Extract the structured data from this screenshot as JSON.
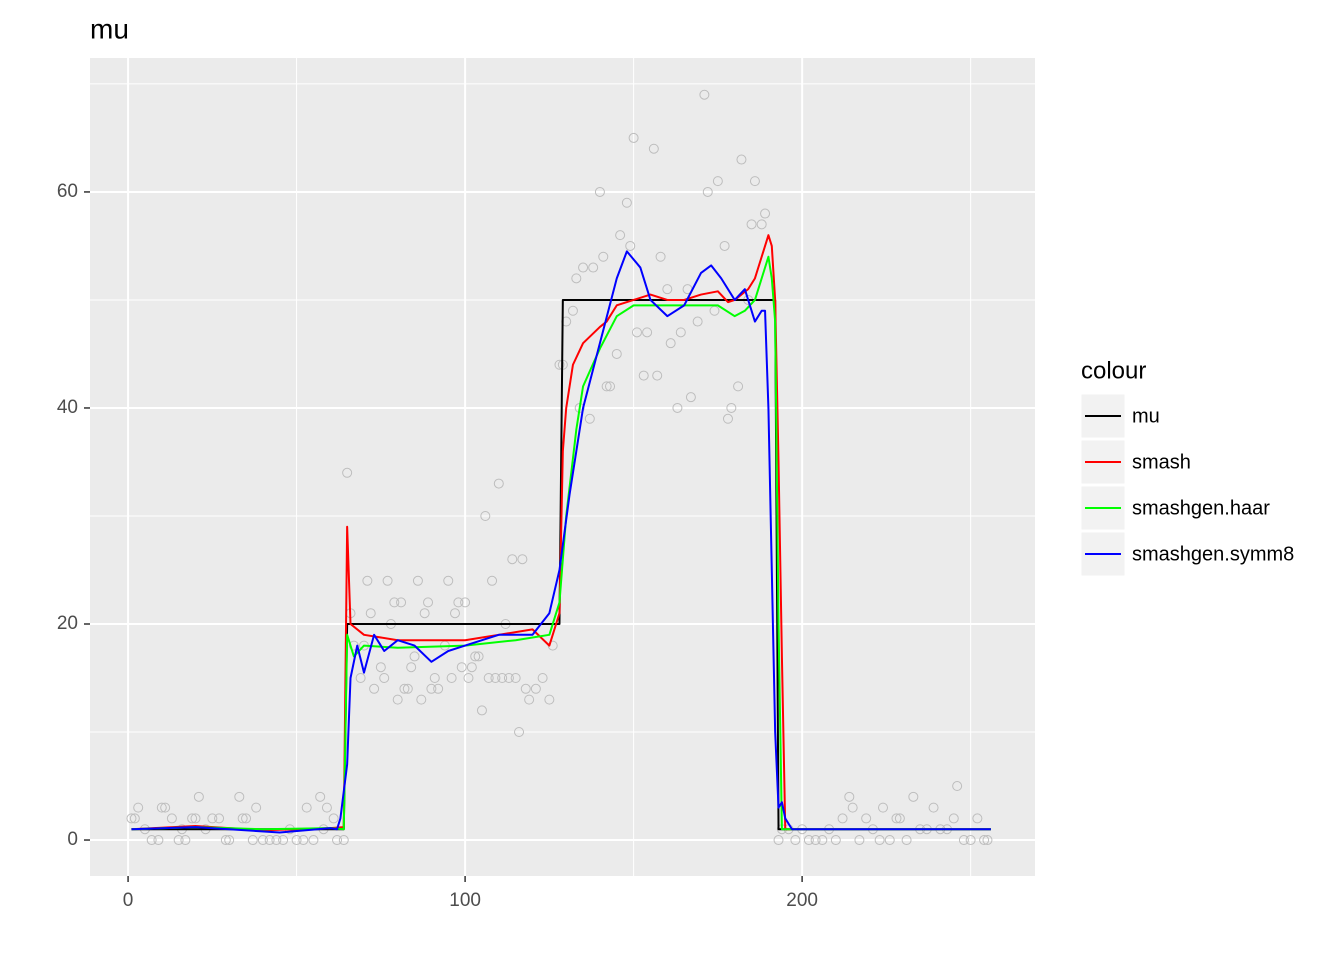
{
  "chart_data": {
    "type": "line",
    "title": "mu",
    "xlim": [
      -11.3,
      269.1
    ],
    "ylim": [
      -3.33,
      72.4
    ],
    "xticks": [
      0,
      100,
      200
    ],
    "yticks": [
      0,
      20,
      40,
      60
    ],
    "x_minor_ticks": [
      50,
      150,
      250
    ],
    "y_minor_ticks": [
      10,
      30,
      50,
      70
    ],
    "grid": true,
    "legend": {
      "title": "colour",
      "position": "right"
    },
    "points": {
      "color": "#bdbdbd",
      "x": [
        1,
        2,
        3,
        5,
        7,
        9,
        10,
        11,
        13,
        15,
        16,
        17,
        19,
        20,
        21,
        23,
        25,
        27,
        29,
        30,
        33,
        34,
        35,
        37,
        38,
        40,
        42,
        44,
        46,
        48,
        50,
        52,
        53,
        55,
        57,
        58,
        59,
        61,
        62,
        64,
        65,
        66,
        67,
        69,
        70,
        71,
        72,
        73,
        75,
        76,
        77,
        78,
        79,
        80,
        81,
        82,
        83,
        84,
        85,
        86,
        87,
        88,
        89,
        90,
        91,
        92,
        94,
        95,
        96,
        97,
        98,
        99,
        100,
        101,
        102,
        103,
        104,
        105,
        106,
        107,
        108,
        109,
        110,
        111,
        112,
        113,
        114,
        115,
        116,
        117,
        118,
        119,
        121,
        123,
        125,
        126,
        128,
        129,
        130,
        132,
        133,
        134,
        135,
        137,
        138,
        140,
        141,
        142,
        143,
        145,
        146,
        148,
        149,
        150,
        151,
        153,
        154,
        156,
        157,
        158,
        160,
        161,
        163,
        164,
        166,
        167,
        169,
        171,
        172,
        174,
        175,
        177,
        178,
        179,
        181,
        182,
        184,
        185,
        186,
        188,
        189,
        193,
        194,
        196,
        198,
        200,
        202,
        204,
        206,
        208,
        210,
        212,
        214,
        215,
        217,
        219,
        221,
        223,
        224,
        226,
        228,
        229,
        231,
        233,
        235,
        237,
        239,
        241,
        243,
        245,
        246,
        248,
        250,
        252,
        254,
        255
      ],
      "values": [
        2,
        2,
        3,
        1,
        0,
        0,
        3,
        3,
        2,
        0,
        1,
        0,
        2,
        2,
        4,
        1,
        2,
        2,
        0,
        0,
        4,
        2,
        2,
        0,
        3,
        0,
        0,
        0,
        0,
        1,
        0,
        0,
        3,
        0,
        4,
        1,
        3,
        2,
        0,
        0,
        34,
        21,
        18,
        15,
        18,
        24,
        21,
        14,
        16,
        15,
        24,
        20,
        22,
        13,
        22,
        14,
        14,
        16,
        17,
        24,
        13,
        21,
        22,
        14,
        15,
        14,
        18,
        24,
        15,
        21,
        22,
        16,
        22,
        15,
        16,
        17,
        17,
        12,
        30,
        15,
        24,
        15,
        33,
        15,
        20,
        15,
        26,
        15,
        10,
        26,
        14,
        13,
        14,
        15,
        13,
        18,
        44,
        44,
        48,
        49,
        52,
        40,
        53,
        39,
        53,
        60,
        54,
        42,
        42,
        45,
        56,
        59,
        55,
        65,
        47,
        43,
        47,
        64,
        43,
        54,
        51,
        46,
        40,
        47,
        51,
        41,
        48,
        69,
        60,
        49,
        61,
        55,
        39,
        40,
        42,
        63,
        50,
        57,
        61,
        57,
        58,
        0,
        1,
        1,
        0,
        1,
        0,
        0,
        0,
        1,
        0,
        2,
        4,
        3,
        0,
        2,
        1,
        0,
        3,
        0,
        2,
        2,
        0,
        4,
        1,
        1,
        3,
        1,
        1,
        2,
        5,
        0,
        0,
        2,
        0,
        0
      ]
    },
    "series": [
      {
        "name": "mu",
        "color": "#000000",
        "x": [
          1,
          64,
          65,
          128,
          129,
          192,
          193,
          256
        ],
        "values": [
          1,
          1,
          20,
          20,
          50,
          50,
          1,
          1
        ]
      },
      {
        "name": "smash",
        "color": "#ff0000",
        "x": [
          1,
          20,
          40,
          60,
          64,
          65,
          66,
          70,
          80,
          100,
          110,
          120,
          125,
          127,
          128,
          129,
          130,
          132,
          135,
          140,
          142,
          145,
          150,
          155,
          160,
          165,
          170,
          175,
          178,
          180,
          184,
          186,
          188,
          190,
          191,
          192,
          193,
          194,
          195,
          200,
          230,
          256
        ],
        "values": [
          1,
          1.3,
          0.9,
          1.1,
          1.2,
          29,
          20,
          19,
          18.5,
          18.5,
          19,
          19.5,
          18,
          20,
          21,
          36,
          40,
          44,
          46,
          47.5,
          48,
          49.5,
          50,
          50.5,
          50,
          50,
          50.5,
          50.8,
          49.8,
          50,
          51,
          52,
          54,
          56,
          55,
          50,
          35,
          17,
          1,
          1,
          1,
          1
        ]
      },
      {
        "name": "smashgen.haar",
        "color": "#00ff00",
        "x": [
          1,
          20,
          40,
          60,
          64,
          65,
          67,
          70,
          80,
          100,
          115,
          125,
          128,
          130,
          133,
          135,
          140,
          145,
          150,
          160,
          175,
          180,
          183,
          186,
          188,
          190,
          191,
          192,
          193,
          194,
          200,
          256
        ],
        "values": [
          1,
          1.2,
          1,
          1.1,
          1,
          19,
          17,
          18,
          17.8,
          18,
          18.5,
          19,
          22,
          30,
          38,
          42,
          45.5,
          48.5,
          49.5,
          49.5,
          49.5,
          48.5,
          49,
          50,
          52,
          54,
          52,
          48,
          20,
          1,
          1,
          1
        ]
      },
      {
        "name": "smashgen.symm8",
        "color": "#0000ff",
        "x": [
          1,
          20,
          45,
          60,
          62,
          63,
          65,
          66,
          68,
          70,
          73,
          76,
          80,
          85,
          90,
          95,
          100,
          105,
          110,
          115,
          120,
          125,
          128,
          131,
          135,
          140,
          145,
          148,
          152,
          155,
          160,
          165,
          170,
          173,
          176,
          180,
          183,
          186,
          188,
          189,
          190,
          191,
          192,
          193,
          194,
          195,
          197,
          205,
          256
        ],
        "values": [
          1,
          1.2,
          0.7,
          1.1,
          1,
          2,
          7,
          15,
          18,
          15.5,
          19,
          17.5,
          18.5,
          18,
          16.5,
          17.5,
          18,
          18.5,
          19,
          19,
          19,
          21,
          25,
          32,
          40,
          46,
          52,
          54.5,
          53,
          50,
          48.5,
          49.5,
          52.5,
          53.2,
          52,
          50,
          51,
          48,
          49,
          49,
          40,
          25,
          10,
          3,
          3.5,
          2,
          1,
          1,
          1
        ]
      }
    ]
  }
}
